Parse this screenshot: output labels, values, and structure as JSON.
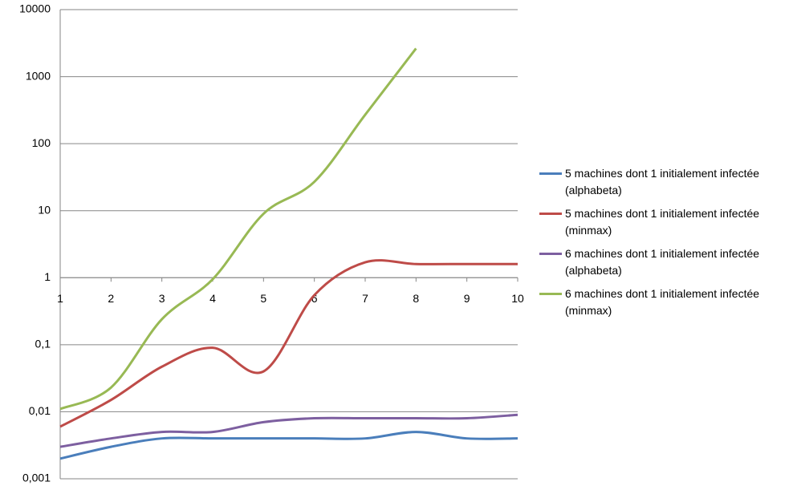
{
  "chart_data": {
    "type": "line",
    "x": [
      1,
      2,
      3,
      4,
      5,
      6,
      7,
      8,
      9,
      10
    ],
    "xlim": [
      1,
      10
    ],
    "xticks": [
      1,
      2,
      3,
      4,
      5,
      6,
      7,
      8,
      9,
      10
    ],
    "ylim": [
      0.001,
      10000
    ],
    "yticks": [
      {
        "value": 0.001,
        "label": "0,001"
      },
      {
        "value": 0.01,
        "label": "0,01"
      },
      {
        "value": 0.1,
        "label": "0,1"
      },
      1,
      10,
      100,
      1000,
      10000
    ],
    "log_scale": true,
    "grid": true,
    "x_axis_crosses": 1,
    "legend": "right",
    "series": [
      {
        "name": "5 machines dont 1 initialement infectée (alphabeta)",
        "color": "#4a7ebb",
        "values": [
          0.002,
          0.003,
          0.004,
          0.004,
          0.004,
          0.004,
          0.004,
          0.005,
          0.004,
          0.004
        ]
      },
      {
        "name": "5 machines dont 1 initialement infectée (minmax)",
        "color": "#be4b48",
        "values": [
          0.006,
          0.015,
          0.047,
          0.09,
          0.04,
          0.55,
          1.7,
          1.6,
          1.6,
          1.6
        ]
      },
      {
        "name": "6 machines dont 1 initialement infectée (alphabeta)",
        "color": "#7d5fa0",
        "values": [
          0.003,
          0.004,
          0.005,
          0.005,
          0.007,
          0.008,
          0.008,
          0.008,
          0.008,
          0.009
        ]
      },
      {
        "name": "6 machines dont 1 initialement infectée (minmax)",
        "color": "#98b954",
        "values": [
          0.011,
          0.023,
          0.24,
          0.95,
          9,
          27,
          270,
          2630,
          null,
          null
        ]
      }
    ]
  }
}
